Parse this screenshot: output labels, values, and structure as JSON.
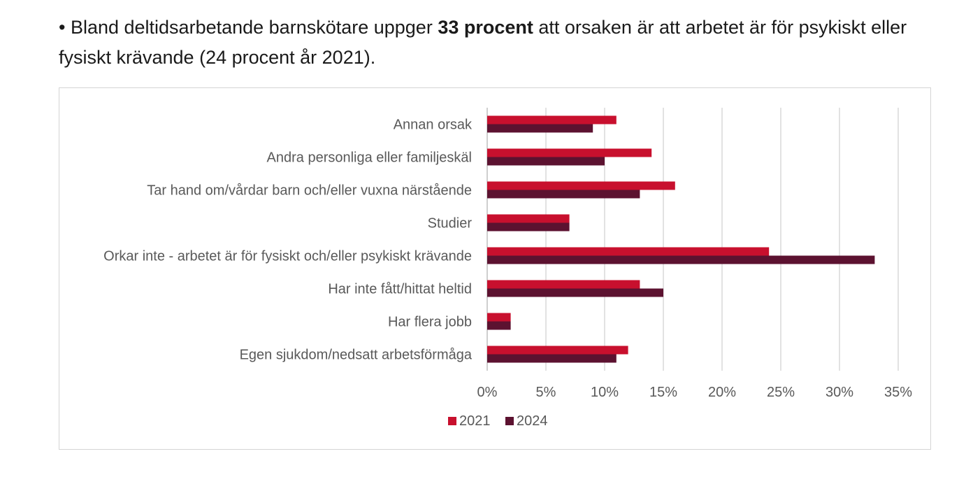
{
  "header": {
    "bullet": "•",
    "text_before": " Bland deltidsarbetande barnskötare uppger ",
    "bold": "33 procent",
    "text_after": " att orsaken är att arbetet är för psykiskt eller fysiskt krävande (24 procent år 2021)."
  },
  "chart_data": {
    "type": "bar",
    "orientation": "horizontal",
    "categories": [
      "Annan orsak",
      "Andra personliga eller familjeskäl",
      "Tar hand om/vårdar barn och/eller vuxna närstående",
      "Studier",
      "Orkar inte - arbetet är för fysiskt och/eller psykiskt krävande",
      "Har inte fått/hittat heltid",
      "Har flera jobb",
      "Egen sjukdom/nedsatt arbetsförmåga"
    ],
    "series": [
      {
        "name": "2021",
        "color": "#c8102e",
        "values": [
          11,
          14,
          16,
          7,
          24,
          13,
          2,
          12
        ]
      },
      {
        "name": "2024",
        "color": "#5c1230",
        "values": [
          9,
          10,
          13,
          7,
          33,
          15,
          2,
          11
        ]
      }
    ],
    "xlim": [
      0,
      35
    ],
    "xticks": [
      0,
      5,
      10,
      15,
      20,
      25,
      30,
      35
    ],
    "tick_suffix": "%",
    "grid": true,
    "legend_position": "bottom",
    "grid_color": "#d9d9d9",
    "axis_color": "#bfbfbf"
  }
}
